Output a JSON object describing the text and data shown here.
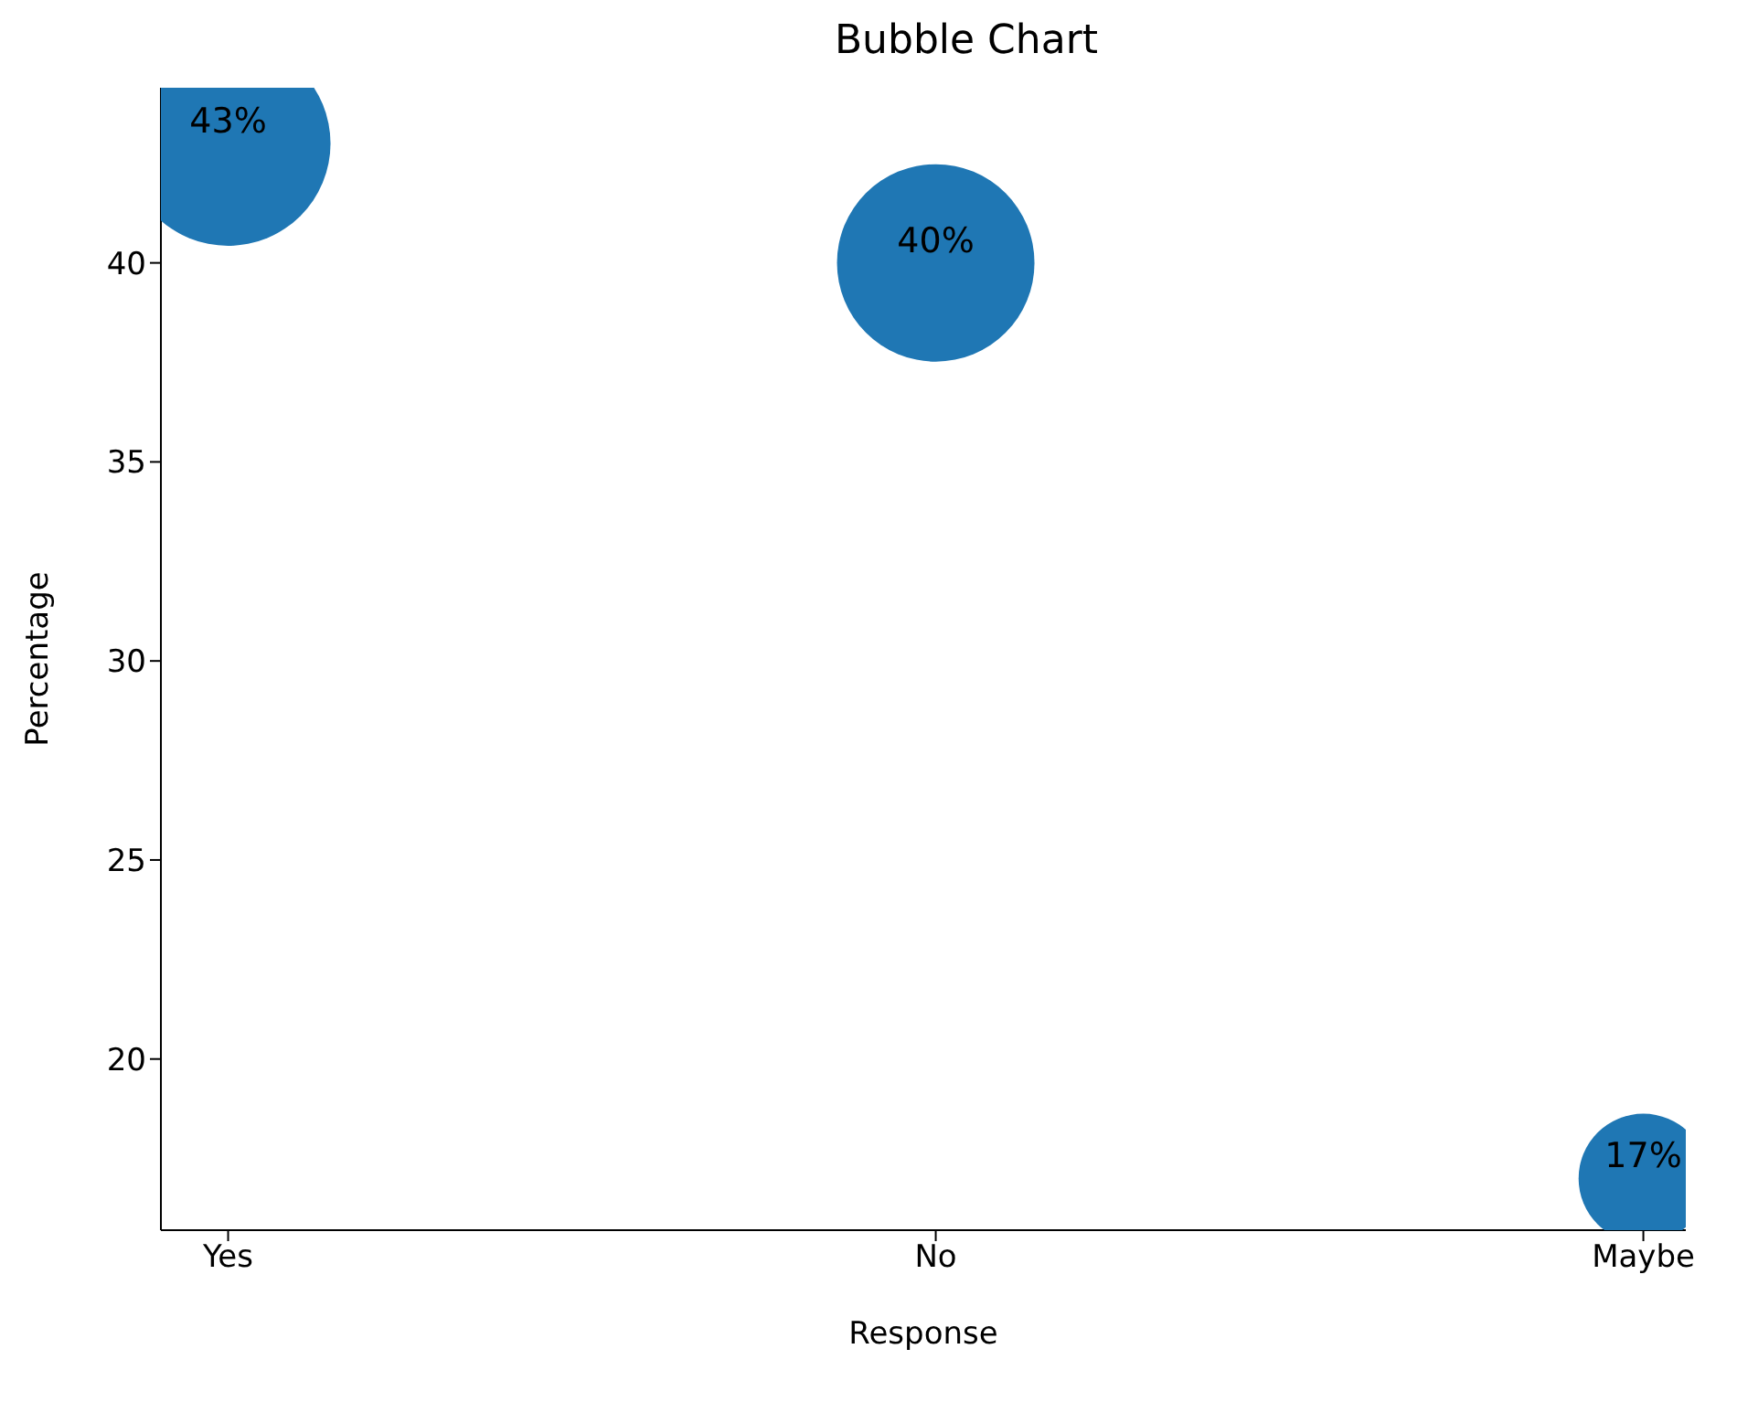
{
  "chart_data": {
    "type": "bubble",
    "title": "Bubble Chart",
    "xlabel": "Response",
    "ylabel": "Percentage",
    "categories": [
      "Yes",
      "No",
      "Maybe"
    ],
    "values": [
      43,
      40,
      17
    ],
    "sizes": [
      1,
      0.93,
      0.4
    ],
    "value_labels": [
      "43%",
      "40%",
      "17%"
    ],
    "color": "#1f77b4",
    "ylim": [
      15.7,
      44.4
    ],
    "yticks": [
      20,
      25,
      30,
      35,
      40
    ],
    "grid": false,
    "legend": false
  }
}
